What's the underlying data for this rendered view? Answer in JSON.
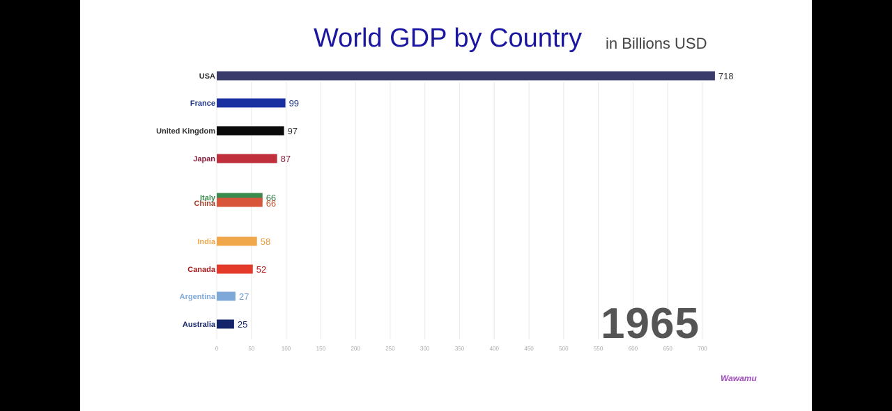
{
  "title": "World GDP by Country",
  "subtitle": "in Billions USD",
  "year": "1965",
  "brand": "Wawamu",
  "chart_data": {
    "type": "bar",
    "orientation": "horizontal",
    "title": "World GDP by Country",
    "subtitle": "in Billions USD",
    "xlim": [
      0,
      700
    ],
    "x_ticks": [
      0,
      50,
      100,
      150,
      200,
      250,
      300,
      350,
      400,
      450,
      500,
      550,
      600,
      650,
      700
    ],
    "grid": true,
    "series": [
      {
        "name": "USA",
        "value": 718,
        "label": "718",
        "color": "#3b3b6b"
      },
      {
        "name": "France",
        "value": 99,
        "label": "99",
        "color": "#1a2fa0"
      },
      {
        "name": "United Kingdom",
        "value": 97,
        "label": "97",
        "color": "#0a0a0a"
      },
      {
        "name": "Japan",
        "value": 87,
        "label": "87",
        "color": "#c0303c"
      },
      {
        "name": "Italy",
        "value": 66,
        "label": "66",
        "color": "#3a8a4e"
      },
      {
        "name": "China",
        "value": 66,
        "label": "66",
        "color": "#d9553a"
      },
      {
        "name": "India",
        "value": 58,
        "label": "58",
        "color": "#f0a64a"
      },
      {
        "name": "Canada",
        "value": 52,
        "label": "52",
        "color": "#e33a2a"
      },
      {
        "name": "Argentina",
        "value": 27,
        "label": "27",
        "color": "#7fa8da"
      },
      {
        "name": "Australia",
        "value": 25,
        "label": "25",
        "color": "#14246a"
      }
    ]
  }
}
